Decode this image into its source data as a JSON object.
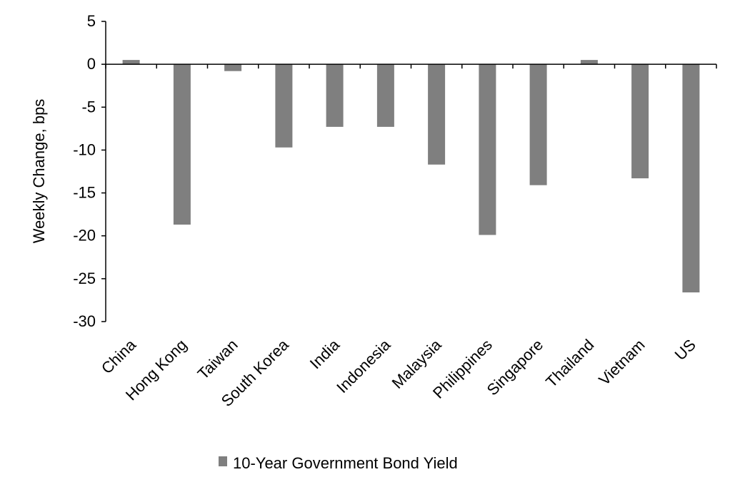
{
  "chart_data": {
    "type": "bar",
    "title": "",
    "xlabel": "",
    "ylabel": "Weekly Change, bps",
    "ylim": [
      -30,
      5
    ],
    "yticks": [
      5,
      0,
      -5,
      -10,
      -15,
      -20,
      -25,
      -30
    ],
    "grid": false,
    "legend_position": "bottom",
    "categories": [
      "China",
      "Hong Kong",
      "Taiwan",
      "South Korea",
      "India",
      "Indonesia",
      "Malaysia",
      "Philippines",
      "Singapore",
      "Thailand",
      "Vietnam",
      "US"
    ],
    "series": [
      {
        "name": "10-Year Government Bond Yield",
        "color": "#7f7f7f",
        "values": [
          0.5,
          -18.7,
          -0.8,
          -9.7,
          -7.3,
          -7.3,
          -11.7,
          -19.9,
          -14.1,
          0.5,
          -13.3,
          -26.6
        ]
      }
    ]
  }
}
